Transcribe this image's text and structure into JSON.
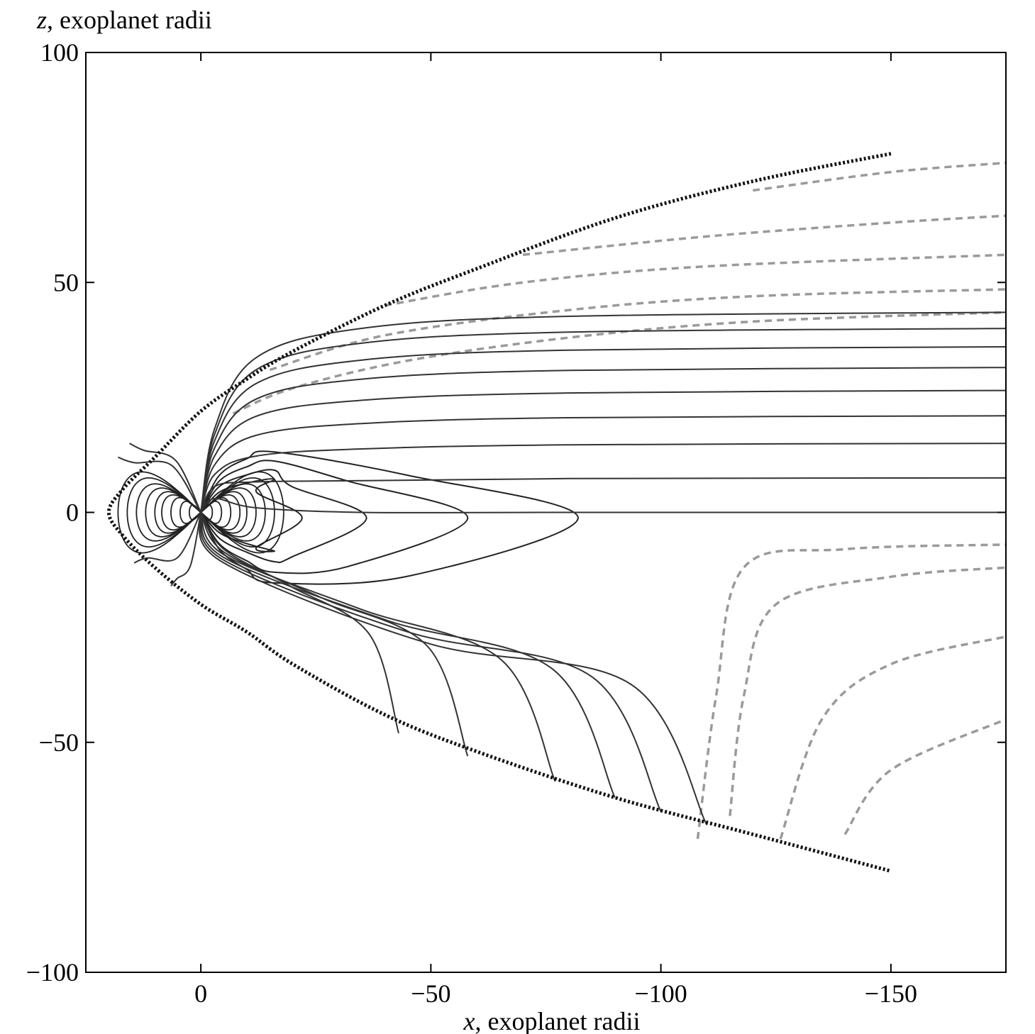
{
  "chart_data": {
    "type": "line",
    "title": "",
    "xlabel_var": "x",
    "xlabel_rest": ", exoplanet radii",
    "ylabel_var": "z",
    "ylabel_rest": ", exoplanet radii",
    "xlim": [
      25,
      -175
    ],
    "ylim": [
      -100,
      100
    ],
    "x_ticks": [
      0,
      -50,
      -100,
      -150
    ],
    "x_tick_labels": [
      "0",
      "−50",
      "−100",
      "−150"
    ],
    "y_ticks": [
      100,
      50,
      0,
      -50,
      -100
    ],
    "y_tick_labels": [
      "100",
      "50",
      "0",
      "−50",
      "−100"
    ],
    "grid": false,
    "legend": "none",
    "colors": {
      "closed_field_lines": "#222222",
      "open_field_lines": "#333333",
      "interplanetary_field_lines": "#9a9a9a",
      "magnetopause": "#111111"
    },
    "series": [
      {
        "style": "dotted-dark",
        "x": [
          -150,
          -120,
          -90,
          -60,
          -40,
          -20,
          -10,
          0,
          10,
          17,
          20,
          17,
          10,
          0,
          -10,
          -20,
          -40,
          -60,
          -90,
          -120,
          -150
        ],
        "y": [
          78,
          72,
          64,
          53,
          45,
          35,
          29,
          22,
          12,
          5,
          0,
          -5,
          -12,
          -20,
          -26,
          -33,
          -44,
          -52,
          -62,
          -70,
          -78
        ]
      }
    ],
    "field_lines": {
      "dipole_loops": [
        {
          "xmin": -2.5,
          "xmax": 2.5,
          "half_height": 1.6
        },
        {
          "xmin": -4.5,
          "xmax": 4.5,
          "half_height": 2.4
        },
        {
          "xmin": -6.5,
          "xmax": 6.5,
          "half_height": 3.2
        },
        {
          "xmin": -8.5,
          "xmax": 8.5,
          "half_height": 3.8
        },
        {
          "xmin": -10,
          "xmax": 10,
          "half_height": 4.5
        },
        {
          "xmin": -12,
          "xmax": 12,
          "half_height": 5.3
        },
        {
          "xmin": -14,
          "xmax": 14,
          "half_height": 6.2
        },
        {
          "xmin": -16,
          "xmax": 16,
          "half_height": 7.5
        },
        {
          "xmin": -18,
          "xmax": 18,
          "half_height": 8.8
        }
      ],
      "tail_nose_x": [
        -22,
        -36,
        -58,
        -82
      ],
      "dayside_open": [
        {
          "x_end": 18,
          "y_end": 12
        },
        {
          "x_end": 15.5,
          "y_end": 15
        },
        {
          "x_end": 14.5,
          "y_end": -11
        },
        {
          "x_end": 6.5,
          "y_end": -16
        }
      ],
      "tail_lobe_z": [
        0,
        7.5,
        15,
        21,
        26.5,
        31.5,
        36,
        40,
        43.5
      ],
      "southern_ends": [
        {
          "x_end": -43,
          "z_end": -48
        },
        {
          "x_end": -58,
          "z_end": -53
        },
        {
          "x_end": -77,
          "z_end": -58.5
        },
        {
          "x_end": -90,
          "z_end": -62
        },
        {
          "x_end": -100,
          "z_end": -65
        },
        {
          "x_end": -110,
          "z_end": -68
        }
      ],
      "interplanetary_north": [
        {
          "x": [
            -7,
            -20,
            -45,
            -80,
            -120,
            -175
          ],
          "z": [
            21.5,
            27,
            33,
            38,
            41.5,
            43.5
          ]
        },
        {
          "x": [
            -15,
            -40,
            -80,
            -120,
            -175
          ],
          "z": [
            31,
            38.5,
            44,
            47,
            48.5
          ]
        },
        {
          "x": [
            -40,
            -70,
            -110,
            -175
          ],
          "z": [
            45,
            50,
            53.5,
            56
          ]
        },
        {
          "x": [
            -70,
            -110,
            -150,
            -175
          ],
          "z": [
            56,
            60,
            63,
            64.5
          ]
        },
        {
          "x": [
            -120,
            -150,
            -175
          ],
          "z": [
            70,
            74,
            76
          ]
        }
      ],
      "interplanetary_south": [
        {
          "x": [
            -108,
            -112,
            -118,
            -140,
            -175
          ],
          "z": [
            -71,
            -40,
            -12,
            -8,
            -7
          ]
        },
        {
          "x": [
            -115,
            -118,
            -125,
            -150,
            -175
          ],
          "z": [
            -66,
            -40,
            -20,
            -14,
            -12
          ]
        },
        {
          "x": [
            -126,
            -135,
            -150,
            -175
          ],
          "z": [
            -71,
            -45,
            -33,
            -27
          ]
        },
        {
          "x": [
            -140,
            -150,
            -175
          ],
          "z": [
            -70,
            -56,
            -45
          ]
        }
      ]
    }
  }
}
